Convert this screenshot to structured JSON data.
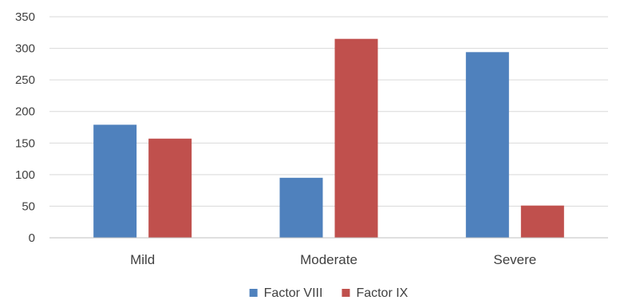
{
  "chart_data": {
    "type": "bar",
    "title": "",
    "xlabel": "",
    "ylabel": "",
    "categories": [
      "Mild",
      "Moderate",
      "Severe"
    ],
    "series": [
      {
        "name": "Factor VIII",
        "values": [
          179,
          95,
          294
        ],
        "color": "#4F81BD"
      },
      {
        "name": "Factor IX",
        "values": [
          157,
          315,
          51
        ],
        "color": "#C0504D"
      }
    ],
    "ylim": [
      0,
      350
    ],
    "yticks": [
      0,
      50,
      100,
      150,
      200,
      250,
      300,
      350
    ],
    "grid": true,
    "legend_position": "bottom"
  }
}
